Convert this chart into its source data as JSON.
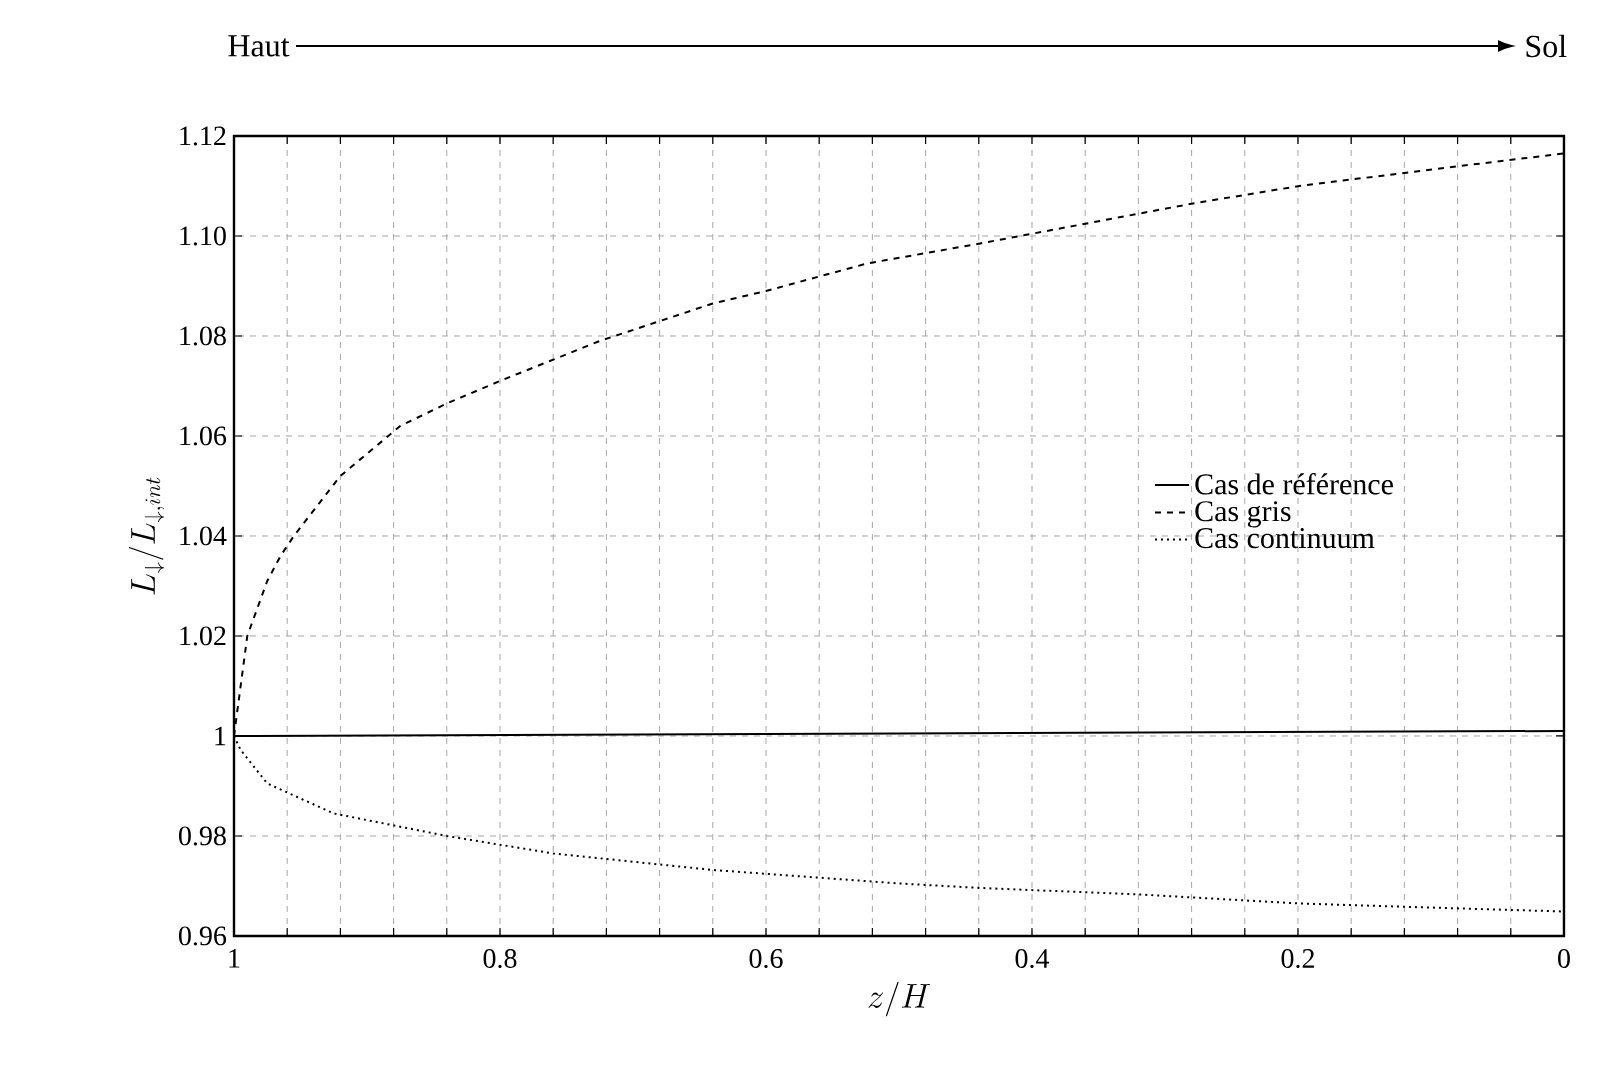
{
  "chart_data": {
    "type": "line",
    "xlabel": "z/H",
    "ylabel": "L_{\\downarrow}/L_{\\downarrow,int}",
    "annotations": [
      "Haut",
      "Sol"
    ],
    "xlim": [
      1,
      0
    ],
    "xticks": [
      {
        "value": 1,
        "label": "1"
      },
      {
        "value": 0.96,
        "label": null
      },
      {
        "value": 0.92,
        "label": null
      },
      {
        "value": 0.88,
        "label": null
      },
      {
        "value": 0.84,
        "label": null
      },
      {
        "value": 0.8,
        "label": "0.8"
      },
      {
        "value": 0.76,
        "label": null
      },
      {
        "value": 0.72,
        "label": null
      },
      {
        "value": 0.68,
        "label": null
      },
      {
        "value": 0.64,
        "label": null
      },
      {
        "value": 0.6,
        "label": "0.6"
      },
      {
        "value": 0.56,
        "label": null
      },
      {
        "value": 0.52,
        "label": null
      },
      {
        "value": 0.48,
        "label": null
      },
      {
        "value": 0.44,
        "label": null
      },
      {
        "value": 0.4,
        "label": "0.4"
      },
      {
        "value": 0.36,
        "label": null
      },
      {
        "value": 0.32,
        "label": null
      },
      {
        "value": 0.28,
        "label": null
      },
      {
        "value": 0.24,
        "label": null
      },
      {
        "value": 0.2,
        "label": "0.2"
      },
      {
        "value": 0.16,
        "label": null
      },
      {
        "value": 0.12,
        "label": null
      },
      {
        "value": 0.08,
        "label": null
      },
      {
        "value": 0.04,
        "label": null
      },
      {
        "value": 0,
        "label": "0"
      }
    ],
    "ylim": [
      0.96,
      1.12
    ],
    "yticks": [
      {
        "value": 0.96,
        "label": "0.96"
      },
      {
        "value": 0.98,
        "label": "0.98"
      },
      {
        "value": 1,
        "label": "1"
      },
      {
        "value": 1.02,
        "label": "1.02"
      },
      {
        "value": 1.04,
        "label": "1.04"
      },
      {
        "value": 1.06,
        "label": "1.06"
      },
      {
        "value": 1.08,
        "label": "1.08"
      },
      {
        "value": 1.1,
        "label": "1.10"
      },
      {
        "value": 1.12,
        "label": "1.12"
      }
    ],
    "grid": true,
    "legend": "right",
    "series": [
      {
        "name": "Cas de référence",
        "color": "#000000",
        "line_style": "solid",
        "x": [
          1,
          0.5,
          0
        ],
        "values": [
          1.0,
          1.0005,
          1.001
        ]
      },
      {
        "name": "Cas gris",
        "color": "#000000",
        "line_style": "dashed",
        "x": [
          1,
          0.995,
          0.99,
          0.975,
          0.965,
          0.955,
          0.92,
          0.875,
          0.84,
          0.8,
          0.725,
          0.64,
          0.6,
          0.524,
          0.439,
          0.399,
          0.279,
          0.199,
          0.078,
          0
        ],
        "values": [
          1.0,
          1.01,
          1.02,
          1.031,
          1.036,
          1.04,
          1.052,
          1.062,
          1.0665,
          1.071,
          1.079,
          1.0865,
          1.089,
          1.0945,
          1.0985,
          1.1005,
          1.1065,
          1.11,
          1.114,
          1.1165
        ]
      },
      {
        "name": "Cas continuum",
        "color": "#000000",
        "line_style": "dotted",
        "x": [
          1,
          0.995,
          0.975,
          0.925,
          0.84,
          0.76,
          0.64,
          0.5,
          0.439,
          0.319,
          0.199,
          0.078,
          0
        ],
        "values": [
          1.0,
          0.9972,
          0.9905,
          0.9845,
          0.98,
          0.9765,
          0.9732,
          0.9705,
          0.9696,
          0.9683,
          0.9665,
          0.9655,
          0.9649
        ]
      }
    ]
  }
}
